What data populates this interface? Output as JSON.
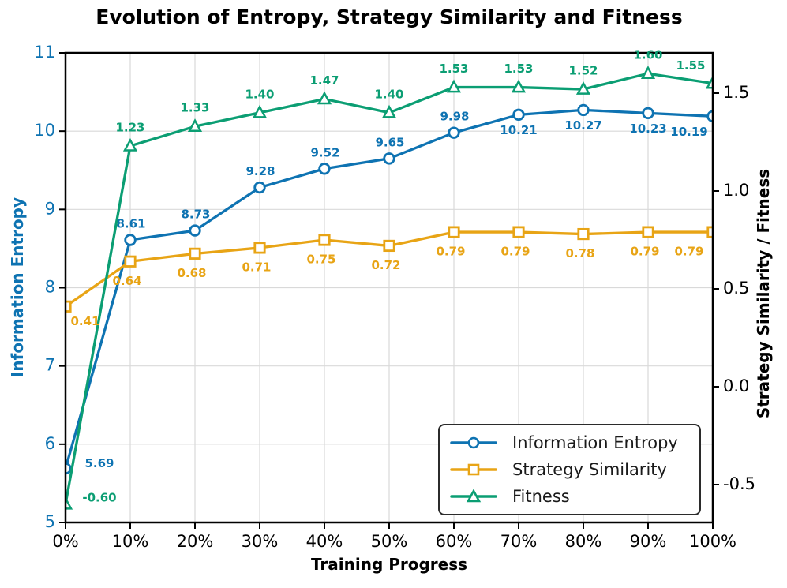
{
  "chart_data": {
    "type": "line",
    "title": "Evolution of Entropy, Strategy Similarity and Fitness",
    "xlabel": "Training Progress",
    "ylabel_left": "Information Entropy",
    "ylabel_right": "Strategy Similarity / Fitness",
    "x_labels": [
      "0%",
      "10%",
      "20%",
      "30%",
      "40%",
      "50%",
      "60%",
      "70%",
      "80%",
      "90%",
      "100%"
    ],
    "left_axis": {
      "range": [
        5,
        11
      ],
      "tick_labels": [
        "5",
        "6",
        "7",
        "8",
        "9",
        "10",
        "11"
      ],
      "tick_values": [
        5,
        6,
        7,
        8,
        9,
        10,
        11
      ],
      "color": "#0e73b2"
    },
    "right_axis": {
      "tick_labels": [
        "1.5",
        "1.0",
        "0.5",
        "0.0",
        "-0.5"
      ],
      "tick_values": [
        1.5,
        1.0,
        0.5,
        0.0,
        -0.5
      ],
      "color": "#000000"
    },
    "grid": true,
    "legend_position": "lower right",
    "series": [
      {
        "name": "Information Entropy",
        "axis": "left",
        "marker": "circle",
        "color": "#0e73b2",
        "values": [
          5.69,
          8.61,
          8.73,
          9.28,
          9.52,
          9.65,
          9.98,
          10.21,
          10.27,
          10.23,
          10.19
        ],
        "point_labels": [
          "5.69",
          "8.61",
          "8.73",
          "9.28",
          "9.52",
          "9.65",
          "9.98",
          "10.21",
          "10.27",
          "10.23",
          "10.19"
        ]
      },
      {
        "name": "Strategy Similarity",
        "axis": "right",
        "marker": "square",
        "color": "#e8a415",
        "values": [
          0.41,
          0.64,
          0.68,
          0.71,
          0.75,
          0.72,
          0.79,
          0.79,
          0.78,
          0.79,
          0.79
        ],
        "point_labels": [
          "0.41",
          "0.64",
          "0.68",
          "0.71",
          "0.75",
          "0.72",
          "0.79",
          "0.79",
          "0.78",
          "0.79",
          "0.79"
        ]
      },
      {
        "name": "Fitness",
        "axis": "right",
        "marker": "triangle",
        "color": "#0b9e73",
        "values": [
          -0.6,
          1.23,
          1.33,
          1.4,
          1.47,
          1.4,
          1.53,
          1.53,
          1.52,
          1.6,
          1.55
        ],
        "point_labels": [
          "-0.60",
          "1.23",
          "1.33",
          "1.40",
          "1.47",
          "1.40",
          "1.53",
          "1.53",
          "1.52",
          "1.60",
          "1.55"
        ]
      }
    ]
  }
}
